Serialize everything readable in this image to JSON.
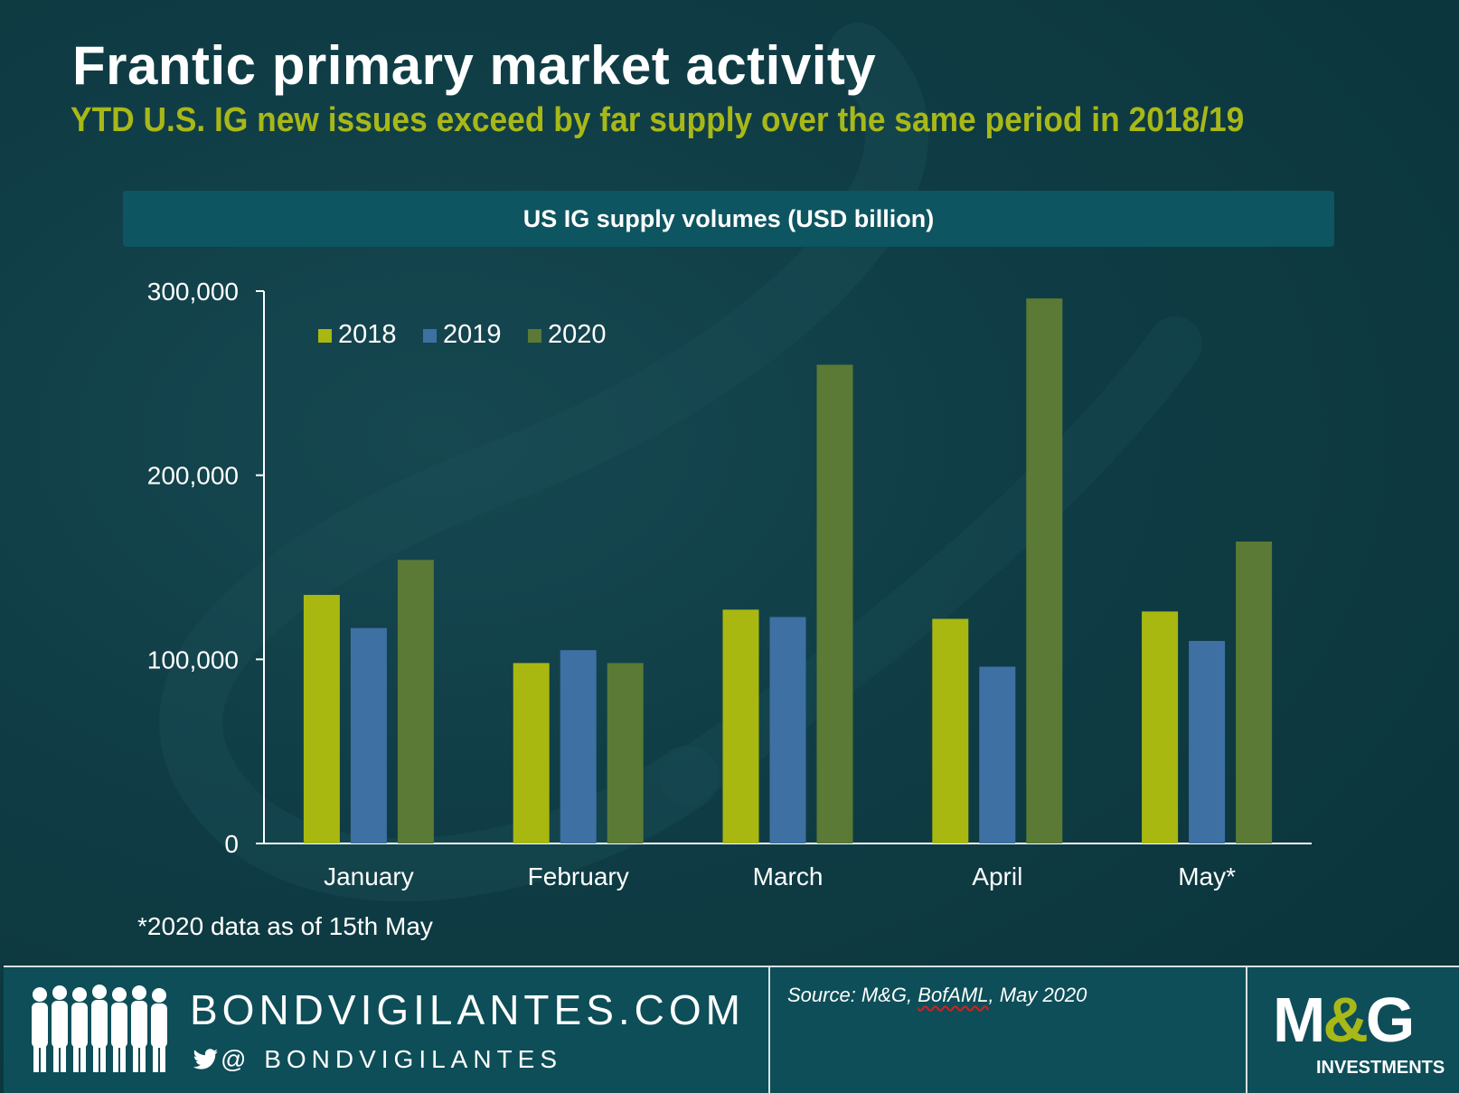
{
  "header": {
    "title": "Frantic primary market activity",
    "subtitle": "YTD U.S. IG new issues exceed by far supply over the same period in 2018/19"
  },
  "chart_data": {
    "type": "bar",
    "title": "US IG supply volumes (USD billion)",
    "categories": [
      "January",
      "February",
      "March",
      "April",
      "May*"
    ],
    "series": [
      {
        "name": "2018",
        "color": "#a8b810",
        "values": [
          135000,
          98000,
          127000,
          122000,
          126000
        ]
      },
      {
        "name": "2019",
        "color": "#3e70a3",
        "values": [
          117000,
          105000,
          123000,
          96000,
          110000
        ]
      },
      {
        "name": "2020",
        "color": "#5a7a35",
        "values": [
          154000,
          98000,
          260000,
          296000,
          164000
        ]
      }
    ],
    "yticks": [
      0,
      100000,
      200000,
      300000
    ],
    "ytick_labels": [
      "0",
      "100,000",
      "200,000",
      "300,000"
    ],
    "ylim": [
      0,
      300000
    ],
    "xlabel": "",
    "ylabel": "",
    "legend_position": "top-left"
  },
  "footnote": "*2020 data as of 15th May",
  "footer": {
    "site": "BONDVIGILANTES.COM",
    "twitter": "@ BONDVIGILANTES",
    "source_prefix": "Source: M&G, ",
    "source_underlined": "BofAML",
    "source_suffix": ", May 2020",
    "logo_main_left": "M",
    "logo_amp": "&",
    "logo_main_right": "G",
    "logo_sub": "INVESTMENTS"
  }
}
